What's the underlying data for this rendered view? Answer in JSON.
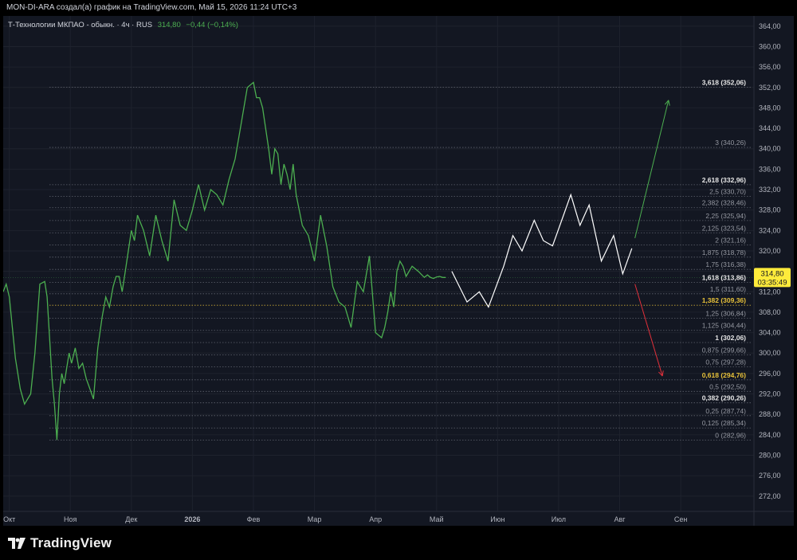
{
  "header": {
    "caption": "MON-DI-ARA создал(а) график на TradingView.com, Май 15, 2026 11:24 UTC+3"
  },
  "legend": {
    "instrument": "Т-Технологии МКПАО - обыкн. · 4ч · RUS",
    "last": "314,80",
    "change": "−0,44 (−0,14%)"
  },
  "price_label": {
    "price": "314,80",
    "countdown": "03:35:49"
  },
  "colors": {
    "background": "#131722",
    "price_line": "#4caf50",
    "projection": "#ffffff",
    "up_arrow": "#4caf50",
    "down_arrow": "#e0303a",
    "fib_line": "#787b86",
    "fib_highlight": "#e8c23a",
    "last_price_badge": "#ffeb3b"
  },
  "footer": {
    "brand": "TradingView"
  },
  "chart_data": {
    "type": "line",
    "x_ticks": [
      "Окт",
      "Ноя",
      "Дек",
      "2026",
      "Фев",
      "Мар",
      "Апр",
      "Май",
      "Июн",
      "Июл",
      "Авг",
      "Сен"
    ],
    "y_ticks": [
      "364,00",
      "360,00",
      "356,00",
      "352,00",
      "348,00",
      "344,00",
      "340,00",
      "336,00",
      "332,00",
      "328,00",
      "324,00",
      "320,00",
      "316,00",
      "312,00",
      "308,00",
      "304,00",
      "300,00",
      "296,00",
      "292,00",
      "288,00",
      "284,00",
      "280,00",
      "276,00",
      "272,00"
    ],
    "ylim": [
      269,
      366
    ],
    "xlim": [
      0,
      12.3
    ],
    "grid": true,
    "series": [
      {
        "x": [
          0,
          0.05,
          0.1,
          0.15,
          0.2,
          0.28,
          0.35,
          0.45,
          0.52,
          0.6,
          0.68,
          0.72,
          0.76,
          0.8,
          0.84,
          0.88,
          0.92,
          0.96,
          1.0,
          1.04,
          1.08,
          1.12,
          1.18,
          1.24,
          1.3,
          1.36,
          1.42,
          1.48,
          1.55,
          1.62,
          1.68,
          1.74,
          1.8,
          1.85,
          1.9,
          1.95,
          2.0,
          2.05,
          2.1,
          2.15,
          2.2,
          2.3,
          2.4,
          2.5,
          2.6,
          2.7,
          2.8,
          2.9,
          3.0,
          3.1,
          3.2,
          3.3,
          3.4,
          3.5,
          3.6,
          3.7,
          3.8,
          3.9,
          4.0,
          4.1,
          4.15,
          4.2,
          4.25,
          4.3,
          4.35,
          4.4,
          4.45,
          4.5,
          4.55,
          4.6,
          4.65,
          4.7,
          4.75,
          4.8,
          4.9,
          5.0,
          5.1,
          5.2,
          5.3,
          5.4,
          5.5,
          5.6,
          5.7,
          5.8,
          5.9,
          6.0,
          6.1,
          6.2,
          6.25,
          6.3,
          6.35,
          6.4,
          6.45,
          6.5,
          6.55,
          6.6,
          6.7,
          6.8,
          6.9,
          6.95,
          7.0,
          7.05,
          7.1,
          7.15,
          7.2,
          7.25
        ],
        "y": [
          312,
          313.5,
          311,
          305,
          299,
          293,
          290,
          292,
          300,
          313.5,
          314,
          311,
          303,
          295,
          290,
          283,
          292,
          296,
          294,
          297,
          300,
          298,
          301,
          297,
          298,
          295,
          293,
          291,
          301,
          307,
          311,
          309,
          313,
          315,
          315,
          312,
          316,
          320,
          324,
          322,
          327,
          324,
          319,
          327,
          322,
          318,
          330,
          325,
          324,
          328,
          333,
          328,
          332,
          331,
          329,
          334,
          338,
          345,
          352,
          353,
          350,
          350,
          348,
          344,
          340,
          335,
          340,
          339,
          333,
          337,
          335,
          332,
          337,
          331,
          325,
          323,
          318,
          327,
          321,
          313,
          310,
          309,
          305,
          314,
          312,
          319,
          304,
          303,
          305,
          308,
          312,
          309,
          316,
          318,
          317,
          315,
          317,
          316,
          314.8,
          315.3,
          314.8,
          314.6,
          314.9,
          315.0,
          314.8,
          314.8
        ]
      }
    ],
    "projection": {
      "x": [
        7.35,
        7.6,
        7.8,
        7.95,
        8.2,
        8.35,
        8.5,
        8.7,
        8.85,
        9.0,
        9.15,
        9.3,
        9.45,
        9.6,
        9.8,
        10.0,
        10.15,
        10.3
      ],
      "y": [
        316,
        310,
        312,
        309,
        317,
        323,
        320,
        326,
        322,
        321,
        326,
        331,
        325,
        329,
        318,
        323,
        315.5,
        320.5
      ]
    },
    "arrows": [
      {
        "from": [
          10.35,
          322.5
        ],
        "to": [
          10.9,
          349.5
        ],
        "direction": "up"
      },
      {
        "from": [
          10.35,
          313.5
        ],
        "to": [
          10.8,
          295.5
        ],
        "direction": "down"
      }
    ],
    "fib_levels": [
      {
        "label": "3,618 (352,06)",
        "price": 352.06,
        "bold": true
      },
      {
        "label": "3 (340,26)",
        "price": 340.26
      },
      {
        "label": "2,618 (332,96)",
        "price": 332.96,
        "bold": true
      },
      {
        "label": "2,5 (330,70)",
        "price": 330.7
      },
      {
        "label": "2,382 (328,46)",
        "price": 328.46
      },
      {
        "label": "2,25 (325,94)",
        "price": 325.94
      },
      {
        "label": "2,125 (323,54)",
        "price": 323.54
      },
      {
        "label": "2 (321,16)",
        "price": 321.16
      },
      {
        "label": "1,875 (318,78)",
        "price": 318.78
      },
      {
        "label": "1,75 (316,38)",
        "price": 316.38
      },
      {
        "label": "1,618 (313,86)",
        "price": 313.86,
        "bold": true
      },
      {
        "label": "1,5 (311,60)",
        "price": 311.6
      },
      {
        "label": "1,382 (309,36)",
        "price": 309.36,
        "bold": true,
        "highlight": true
      },
      {
        "label": "1,25 (306,84)",
        "price": 306.84
      },
      {
        "label": "1,125 (304,44)",
        "price": 304.44
      },
      {
        "label": "1 (302,06)",
        "price": 302.06,
        "bold": true
      },
      {
        "label": "0,875 (299,66)",
        "price": 299.66
      },
      {
        "label": "0,75 (297,28)",
        "price": 297.28
      },
      {
        "label": "0,618 (294,76)",
        "price": 294.76,
        "bold": true,
        "highlight": true
      },
      {
        "label": "0,5 (292,50)",
        "price": 292.5
      },
      {
        "label": "0,382 (290,26)",
        "price": 290.26,
        "bold": true
      },
      {
        "label": "0,25 (287,74)",
        "price": 287.74
      },
      {
        "label": "0,125 (285,34)",
        "price": 285.34
      },
      {
        "label": "0 (282,96)",
        "price": 282.96
      }
    ],
    "last_price": 314.8
  }
}
